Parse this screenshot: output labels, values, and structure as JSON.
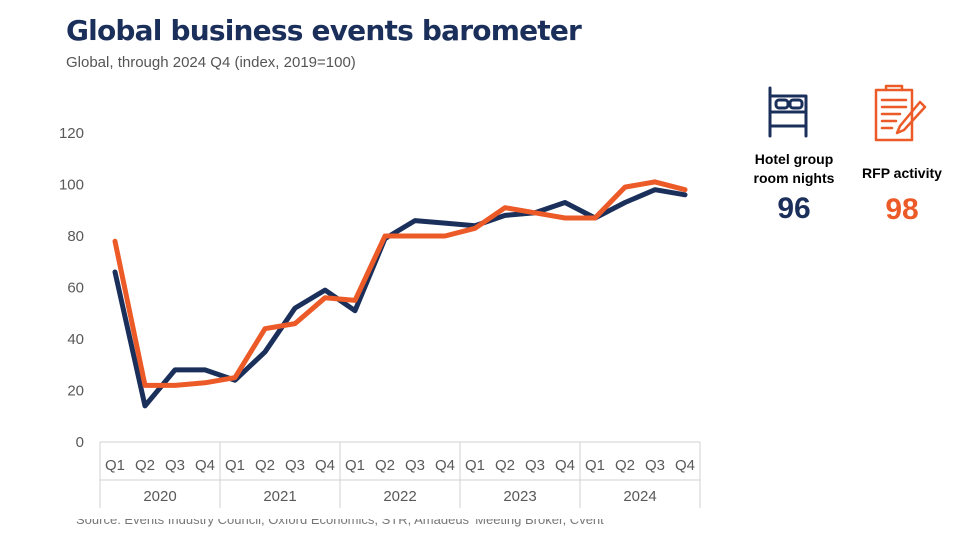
{
  "title": "Global business events barometer",
  "subtitle": "Global, through 2024 Q4 (index, 2019=100)",
  "source": "Source: Events Industry Council, Oxford Economics, STR, Amadeus' Meeting Broker, Cvent",
  "colors": {
    "navy": "#1b2f5b",
    "orange": "#ec5a28",
    "axis": "#d0d0d0"
  },
  "kpis": {
    "hotel": {
      "label_line1": "Hotel group",
      "label_line2": "room nights",
      "value": "96",
      "icon": "bed-icon"
    },
    "rfp": {
      "label": "RFP activity",
      "value": "98",
      "icon": "document-pen-icon"
    }
  },
  "chart_data": {
    "type": "line",
    "title": "Global business events barometer",
    "subtitle": "Global, through 2024 Q4 (index, 2019=100)",
    "ylim": [
      0,
      120
    ],
    "yticks": [
      0,
      20,
      40,
      60,
      80,
      100,
      120
    ],
    "categories": [
      "Q1",
      "Q2",
      "Q3",
      "Q4",
      "Q1",
      "Q2",
      "Q3",
      "Q4",
      "Q1",
      "Q2",
      "Q3",
      "Q4",
      "Q1",
      "Q2",
      "Q3",
      "Q4",
      "Q1",
      "Q2",
      "Q3",
      "Q4"
    ],
    "groups": [
      "2020",
      "2021",
      "2022",
      "2023",
      "2024"
    ],
    "series": [
      {
        "name": "Hotel group room nights",
        "color": "#1b2f5b",
        "values": [
          66,
          14,
          28,
          28,
          24,
          35,
          52,
          59,
          51,
          79,
          86,
          85,
          84,
          88,
          89,
          93,
          87,
          93,
          98,
          96
        ]
      },
      {
        "name": "RFP activity",
        "color": "#ec5a28",
        "values": [
          78,
          22,
          22,
          23,
          25,
          44,
          46,
          56,
          55,
          80,
          80,
          80,
          83,
          91,
          89,
          87,
          87,
          99,
          101,
          98
        ]
      }
    ]
  }
}
